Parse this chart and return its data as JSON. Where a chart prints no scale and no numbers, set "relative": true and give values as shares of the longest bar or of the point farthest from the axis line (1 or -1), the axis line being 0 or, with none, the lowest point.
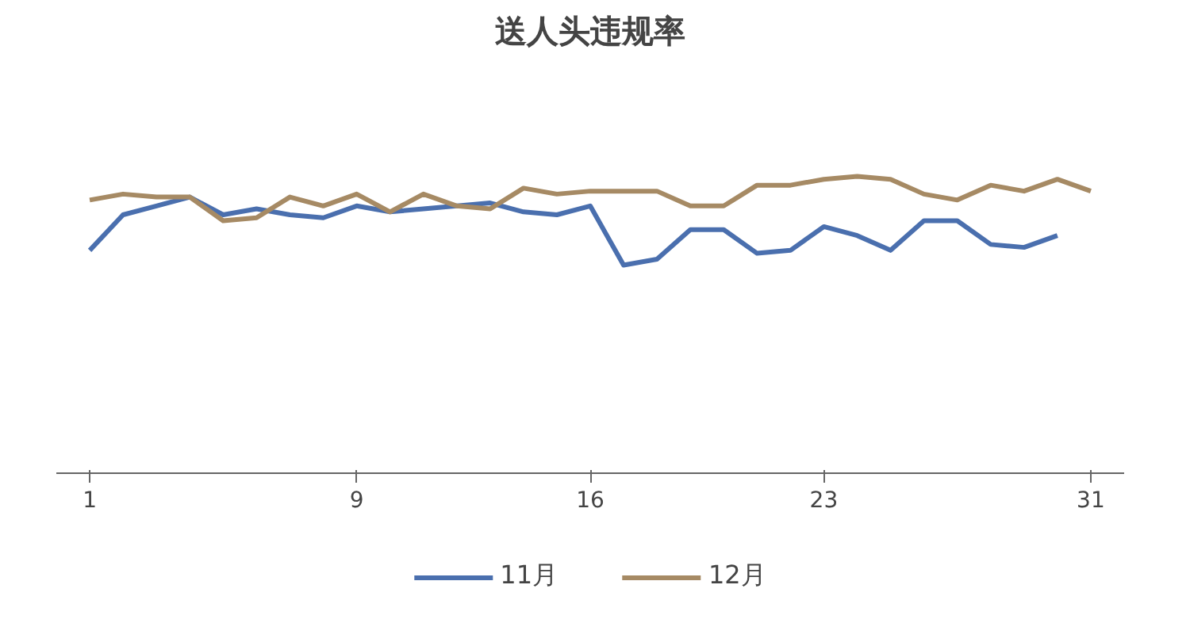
{
  "chart_data": {
    "type": "line",
    "title": "送人头违规率",
    "relative": true,
    "x": [
      1,
      2,
      3,
      4,
      5,
      6,
      7,
      8,
      9,
      10,
      11,
      12,
      13,
      14,
      15,
      16,
      17,
      18,
      19,
      20,
      21,
      22,
      23,
      24,
      25,
      26,
      27,
      28,
      29,
      30,
      31
    ],
    "xlim": [
      0,
      32
    ],
    "xticks": [
      1,
      9,
      16,
      23,
      31
    ],
    "grid": false,
    "legend": "bottom",
    "marker": "none",
    "line_style": "solid",
    "series": [
      {
        "name": "11月",
        "color": "#4a6fae",
        "values": [
          0.75,
          0.87,
          0.9,
          0.93,
          0.87,
          0.89,
          0.87,
          0.86,
          0.9,
          0.88,
          0.89,
          0.9,
          0.91,
          0.88,
          0.87,
          0.9,
          0.7,
          0.72,
          0.82,
          0.82,
          0.74,
          0.75,
          0.83,
          0.8,
          0.75,
          0.85,
          0.85,
          0.77,
          0.76,
          0.8,
          null
        ]
      },
      {
        "name": "12月",
        "color": "#a68a64",
        "values": [
          0.92,
          0.94,
          0.93,
          0.93,
          0.85,
          0.86,
          0.93,
          0.9,
          0.94,
          0.88,
          0.94,
          0.9,
          0.89,
          0.96,
          0.94,
          0.95,
          0.95,
          0.95,
          0.9,
          0.9,
          0.97,
          0.97,
          0.99,
          1,
          0.99,
          0.94,
          0.92,
          0.97,
          0.95,
          0.99,
          0.95
        ]
      }
    ]
  }
}
